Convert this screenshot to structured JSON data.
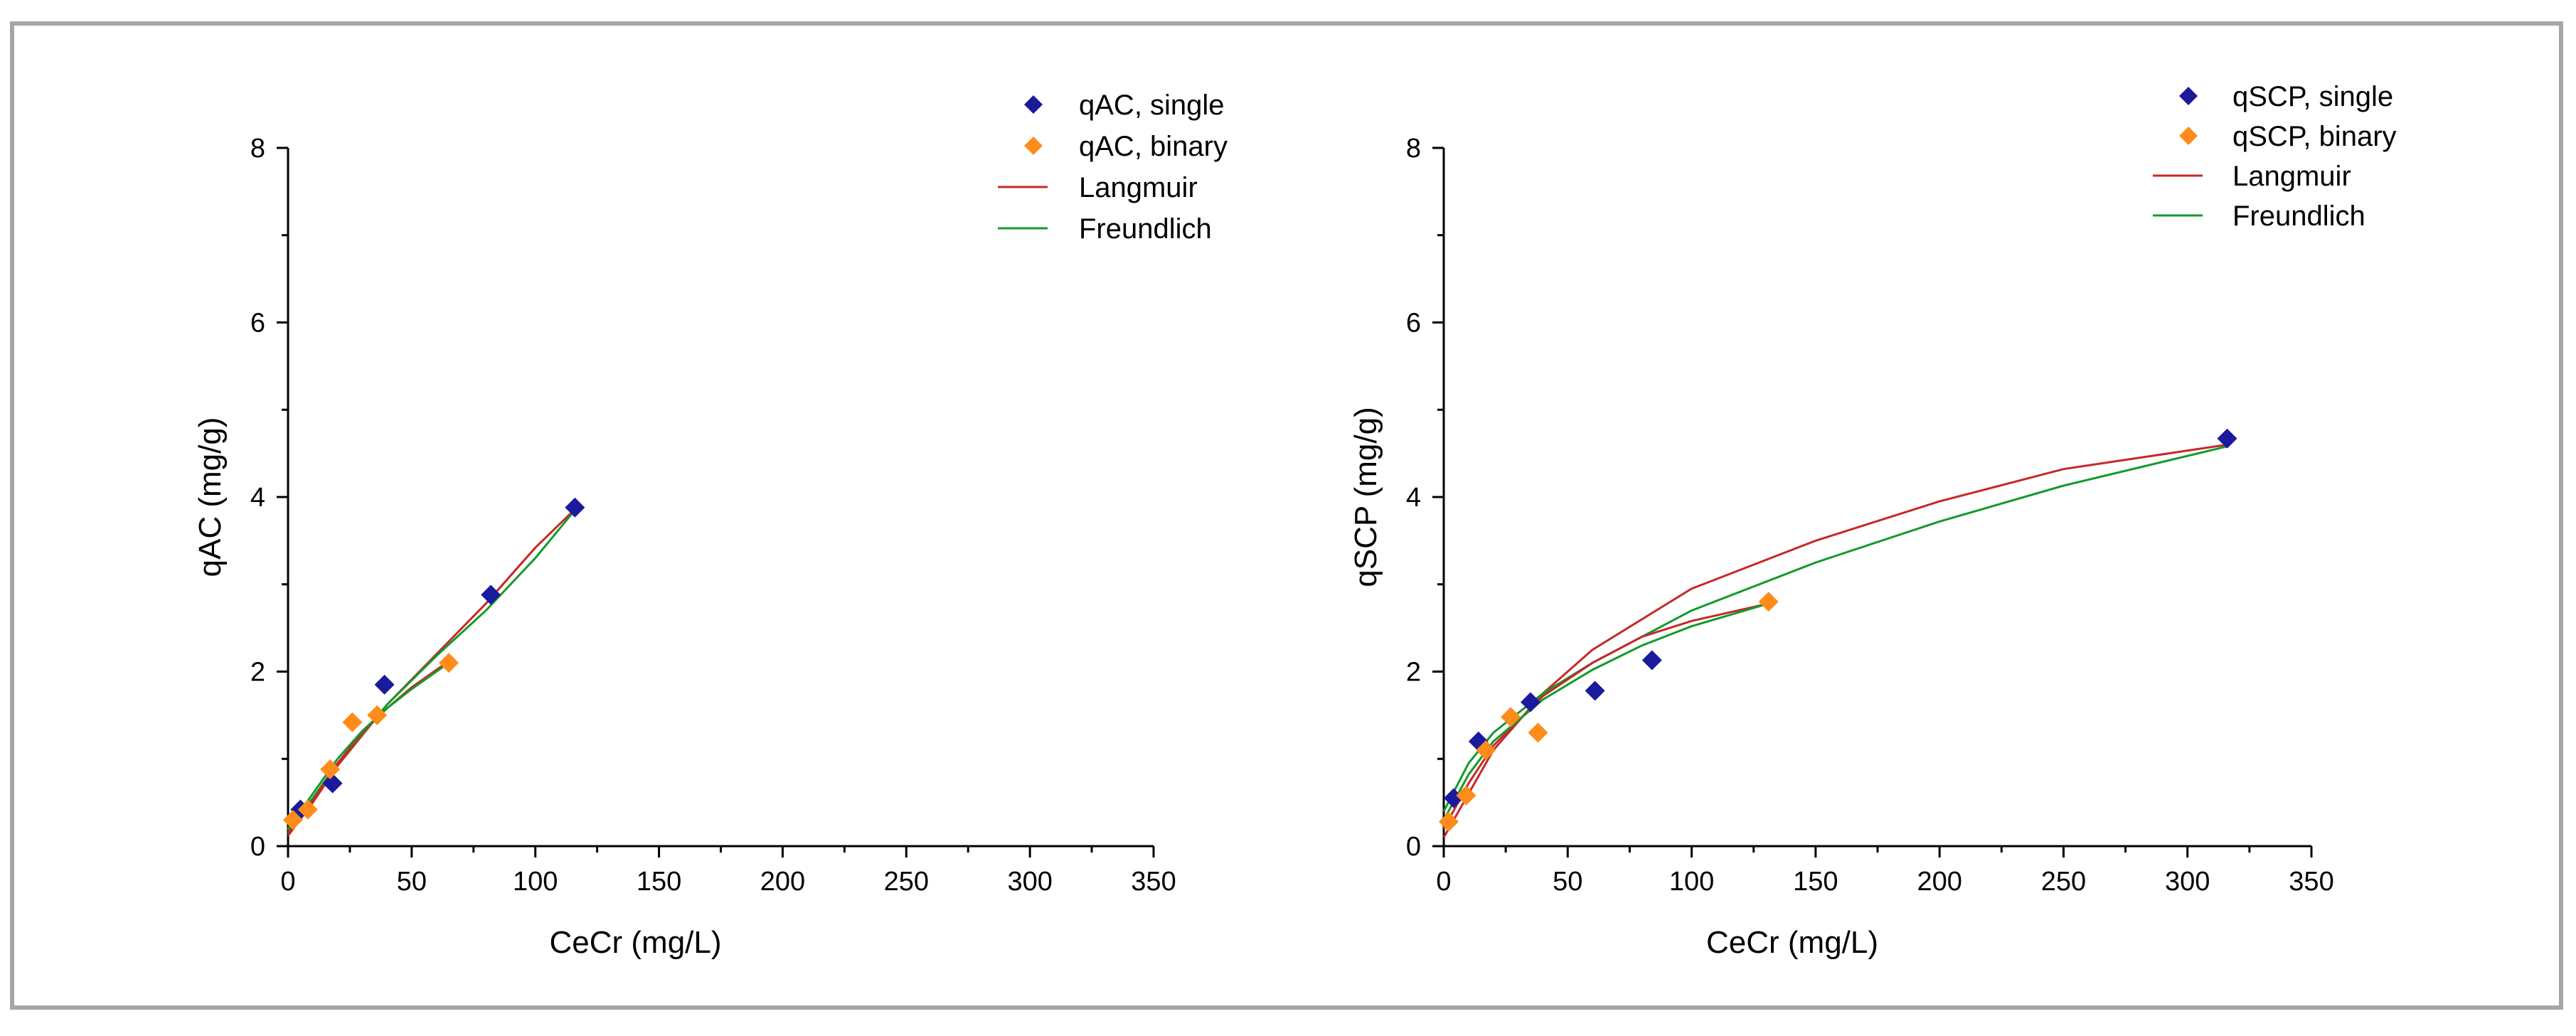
{
  "colors": {
    "single": "#1a1a9c",
    "binary": "#ff8c1a",
    "langmuir": "#c62828",
    "freundlich": "#129b2a",
    "frame": "#a6a6a6"
  },
  "chart_data": [
    {
      "type": "scatter",
      "xlabel": "CeCr (mg/L)",
      "ylabel": "qAC (mg/g)",
      "xlim": [
        0,
        350
      ],
      "ylim": [
        0,
        8
      ],
      "xticks": [
        0,
        50,
        100,
        150,
        200,
        250,
        300,
        350
      ],
      "yticks": [
        0,
        2,
        4,
        6,
        8
      ],
      "legend": [
        "qAC, single",
        "qAC, binary",
        "Langmuir",
        "Freundlich"
      ],
      "series": [
        {
          "name": "qAC, single",
          "kind": "marker",
          "color_key": "single",
          "points": [
            [
              5,
              0.42
            ],
            [
              18,
              0.72
            ],
            [
              39,
              1.85
            ],
            [
              82,
              2.88
            ],
            [
              116,
              3.88
            ]
          ]
        },
        {
          "name": "qAC, binary",
          "kind": "marker",
          "color_key": "binary",
          "points": [
            [
              2,
              0.3
            ],
            [
              8,
              0.42
            ],
            [
              17,
              0.88
            ],
            [
              26,
              1.42
            ],
            [
              36,
              1.5
            ],
            [
              65,
              2.1
            ]
          ]
        },
        {
          "name": "Langmuir (single)",
          "kind": "curve",
          "color_key": "langmuir",
          "points": [
            [
              0,
              0.12
            ],
            [
              10,
              0.5
            ],
            [
              20,
              0.92
            ],
            [
              40,
              1.62
            ],
            [
              60,
              2.2
            ],
            [
              80,
              2.78
            ],
            [
              100,
              3.42
            ],
            [
              116,
              3.86
            ]
          ]
        },
        {
          "name": "Freundlich (single)",
          "kind": "curve",
          "color_key": "freundlich",
          "points": [
            [
              0,
              0.18
            ],
            [
              10,
              0.55
            ],
            [
              20,
              0.95
            ],
            [
              40,
              1.62
            ],
            [
              60,
              2.18
            ],
            [
              80,
              2.7
            ],
            [
              100,
              3.3
            ],
            [
              116,
              3.85
            ]
          ]
        },
        {
          "name": "Langmuir (binary)",
          "kind": "curve",
          "color_key": "langmuir",
          "points": [
            [
              0,
              0.15
            ],
            [
              10,
              0.52
            ],
            [
              20,
              0.95
            ],
            [
              30,
              1.3
            ],
            [
              40,
              1.58
            ],
            [
              50,
              1.82
            ],
            [
              65,
              2.12
            ]
          ]
        },
        {
          "name": "Freundlich (binary)",
          "kind": "curve",
          "color_key": "freundlich",
          "points": [
            [
              0,
              0.2
            ],
            [
              10,
              0.6
            ],
            [
              20,
              1.0
            ],
            [
              30,
              1.32
            ],
            [
              40,
              1.58
            ],
            [
              50,
              1.8
            ],
            [
              65,
              2.1
            ]
          ]
        }
      ]
    },
    {
      "type": "scatter",
      "xlabel": "CeCr (mg/L)",
      "ylabel": "qSCP (mg/g)",
      "xlim": [
        0,
        350
      ],
      "ylim": [
        0,
        8
      ],
      "xticks": [
        0,
        50,
        100,
        150,
        200,
        250,
        300,
        350
      ],
      "yticks": [
        0,
        2,
        4,
        6,
        8
      ],
      "legend": [
        "qSCP, single",
        "qSCP, binary",
        "Langmuir",
        "Freundlich"
      ],
      "series": [
        {
          "name": "qSCP, single",
          "kind": "marker",
          "color_key": "single",
          "points": [
            [
              4,
              0.55
            ],
            [
              14,
              1.2
            ],
            [
              35,
              1.65
            ],
            [
              61,
              1.78
            ],
            [
              84,
              2.13
            ],
            [
              316,
              4.67
            ]
          ]
        },
        {
          "name": "qSCP, binary",
          "kind": "marker",
          "color_key": "binary",
          "points": [
            [
              2,
              0.28
            ],
            [
              9,
              0.58
            ],
            [
              17,
              1.1
            ],
            [
              27,
              1.48
            ],
            [
              38,
              1.3
            ],
            [
              131,
              2.8
            ]
          ]
        },
        {
          "name": "Langmuir (single)",
          "kind": "curve",
          "color_key": "langmuir",
          "points": [
            [
              0,
              0.1
            ],
            [
              10,
              0.6
            ],
            [
              20,
              1.1
            ],
            [
              40,
              1.75
            ],
            [
              60,
              2.25
            ],
            [
              100,
              2.95
            ],
            [
              150,
              3.5
            ],
            [
              200,
              3.95
            ],
            [
              250,
              4.32
            ],
            [
              316,
              4.6
            ]
          ]
        },
        {
          "name": "Freundlich (single)",
          "kind": "curve",
          "color_key": "freundlich",
          "points": [
            [
              0,
              0.4
            ],
            [
              10,
              0.95
            ],
            [
              20,
              1.3
            ],
            [
              40,
              1.75
            ],
            [
              60,
              2.1
            ],
            [
              100,
              2.7
            ],
            [
              150,
              3.25
            ],
            [
              200,
              3.72
            ],
            [
              250,
              4.13
            ],
            [
              316,
              4.58
            ]
          ]
        },
        {
          "name": "Langmuir (binary)",
          "kind": "curve",
          "color_key": "langmuir",
          "points": [
            [
              0,
              0.2
            ],
            [
              10,
              0.72
            ],
            [
              20,
              1.15
            ],
            [
              40,
              1.72
            ],
            [
              60,
              2.1
            ],
            [
              80,
              2.4
            ],
            [
              100,
              2.58
            ],
            [
              131,
              2.78
            ]
          ]
        },
        {
          "name": "Freundlich (binary)",
          "kind": "curve",
          "color_key": "freundlich",
          "points": [
            [
              0,
              0.3
            ],
            [
              10,
              0.82
            ],
            [
              20,
              1.2
            ],
            [
              40,
              1.68
            ],
            [
              60,
              2.02
            ],
            [
              80,
              2.3
            ],
            [
              100,
              2.52
            ],
            [
              131,
              2.78
            ]
          ]
        }
      ]
    }
  ]
}
